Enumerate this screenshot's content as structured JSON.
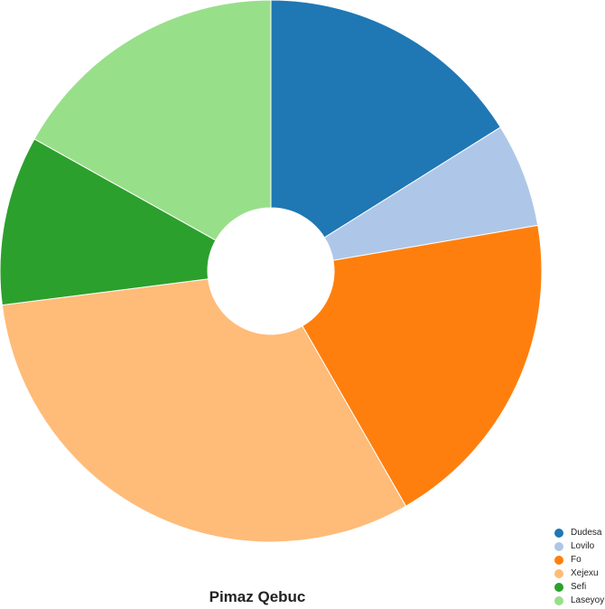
{
  "chart_data": {
    "type": "pie",
    "title": "Pimaz Qebuc",
    "donut": true,
    "legend_position": "bottom-right",
    "categories": [
      "Dudesa",
      "Lovilo",
      "Fo",
      "Xejexu",
      "Sefi",
      "Laseyoy"
    ],
    "values": [
      16.1,
      6.2,
      19.4,
      31.3,
      10.1,
      16.9
    ],
    "colors": [
      "#1f77b4",
      "#aec7e8",
      "#ff7f0e",
      "#ffbb78",
      "#2ca02c",
      "#98df8a"
    ]
  }
}
